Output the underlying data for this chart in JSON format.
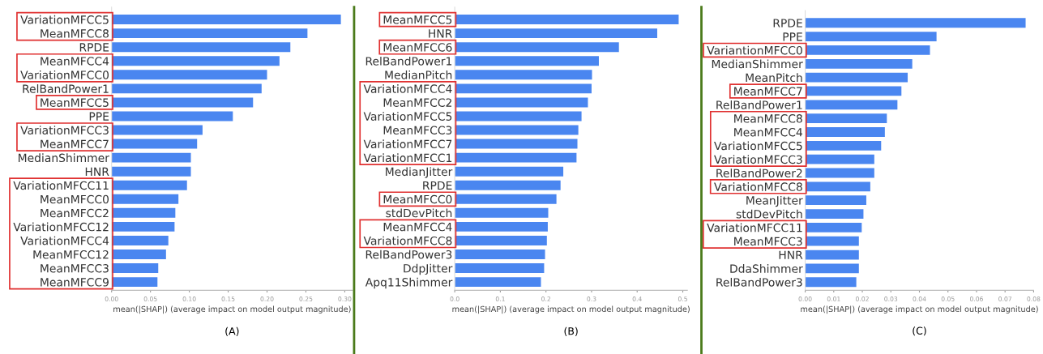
{
  "chart_data": [
    {
      "type": "bar",
      "orientation": "horizontal",
      "xlabel": "mean(|SHAP|) (average impact on model output magnitude)",
      "annotations": [
        "(A)"
      ],
      "grid": false,
      "legend": false,
      "categories": [
        "VariationMFCC5",
        "MeanMFCC8",
        "RPDE",
        "MeanMFCC4",
        "VariationMFCC0",
        "RelBandPower1",
        "MeanMFCC5",
        "PPE",
        "VariationMFCC3",
        "MeanMFCC7",
        "MedianShimmer",
        "HNR",
        "VariationMFCC11",
        "MeanMFCC0",
        "MeanMFCC2",
        "VariationMFCC12",
        "VariationMFCC4",
        "MeanMFCC12",
        "MeanMFCC3",
        "MeanMFCC9"
      ],
      "values": [
        0.295,
        0.252,
        0.23,
        0.216,
        0.2,
        0.193,
        0.182,
        0.156,
        0.117,
        0.11,
        0.102,
        0.102,
        0.097,
        0.086,
        0.082,
        0.081,
        0.073,
        0.07,
        0.06,
        0.059
      ],
      "color": "#4a86f0",
      "xlim": [
        0,
        0.31
      ],
      "xticks": [
        {
          "value": 0,
          "label": "0.00"
        },
        {
          "value": 0.05,
          "label": "0.05"
        },
        {
          "value": 0.1,
          "label": "0.10"
        },
        {
          "value": 0.15,
          "label": "0.15"
        },
        {
          "value": 0.2,
          "label": "0.20"
        },
        {
          "value": 0.25,
          "label": "0.25"
        },
        {
          "value": 0.3,
          "label": "0.30"
        }
      ]
    },
    {
      "type": "bar",
      "orientation": "horizontal",
      "xlabel": "mean(|SHAP|) (average impact on model output magnitude)",
      "annotations": [
        "(B)"
      ],
      "grid": false,
      "legend": false,
      "categories": [
        "MeanMFCC5",
        "HNR",
        "MeanMFCC6",
        "RelBandPower1",
        "MedianPitch",
        "VariationMFCC4",
        "MeanMFCC2",
        "VariationMFCC5",
        "MeanMFCC3",
        "VariationMFCC7",
        "VariationMFCC1",
        "MedianJitter",
        "RPDE",
        "MeanMFCC0",
        "stdDevPitch",
        "MeanMFCC4",
        "VariationMFCC8",
        "RelBandPower3",
        "DdpJitter",
        "Apq11Shimmer"
      ],
      "values": [
        0.491,
        0.444,
        0.36,
        0.316,
        0.301,
        0.3,
        0.292,
        0.278,
        0.271,
        0.269,
        0.267,
        0.238,
        0.232,
        0.223,
        0.205,
        0.204,
        0.202,
        0.198,
        0.196,
        0.189
      ],
      "color": "#4a86f0",
      "xlim": [
        0,
        0.51
      ],
      "xticks": [
        {
          "value": 0,
          "label": "0.0"
        },
        {
          "value": 0.1,
          "label": "0.1"
        },
        {
          "value": 0.2,
          "label": "0.2"
        },
        {
          "value": 0.3,
          "label": "0.3"
        },
        {
          "value": 0.4,
          "label": "0.4"
        },
        {
          "value": 0.5,
          "label": "0.5"
        }
      ]
    },
    {
      "type": "bar",
      "orientation": "horizontal",
      "xlabel": "mean(|SHAP|) (average impact on model output magnitude)",
      "annotations": [
        "(C)"
      ],
      "grid": false,
      "legend": false,
      "categories": [
        "RPDE",
        "PPE",
        "VariantionMFCC0",
        "MedianShimmer",
        "MeanPitch",
        "MeanMFCC7",
        "RelBandPower1",
        "MeanMFCC8",
        "MeanMFCC4",
        "VariationMFCC5",
        "VariationMFCC3",
        "RelBandPower2",
        "VariationMFCC8",
        "MeanJitter",
        "stdDevPitch",
        "VariationMFCC11",
        "MeanMFCC3",
        "HNR",
        "DdaShimmer",
        "RelBandPower3"
      ],
      "values": [
        0.0772,
        0.046,
        0.0437,
        0.0375,
        0.0359,
        0.0337,
        0.0323,
        0.0286,
        0.0279,
        0.0266,
        0.0242,
        0.0242,
        0.0228,
        0.0214,
        0.0204,
        0.0198,
        0.0188,
        0.0188,
        0.0188,
        0.0179
      ],
      "color": "#4a86f0",
      "xlim": [
        0,
        0.08
      ],
      "xticks": [
        {
          "value": 0,
          "label": "0.00"
        },
        {
          "value": 0.01,
          "label": "0.01"
        },
        {
          "value": 0.02,
          "label": "0.02"
        },
        {
          "value": 0.03,
          "label": "0.03"
        },
        {
          "value": 0.04,
          "label": "0.04"
        },
        {
          "value": 0.05,
          "label": "0.05"
        },
        {
          "value": 0.06,
          "label": "0.06"
        },
        {
          "value": 0.07,
          "label": "0.07"
        },
        {
          "value": 0.08,
          "label": "0.08"
        }
      ]
    }
  ]
}
